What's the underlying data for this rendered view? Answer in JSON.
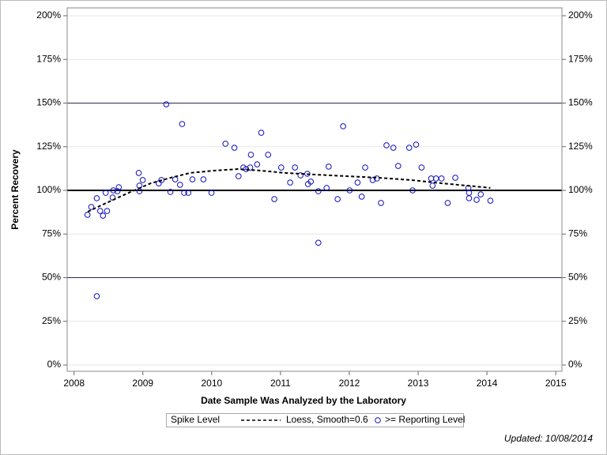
{
  "chart_data": {
    "type": "scatter",
    "x_label": "Date Sample Was Analyzed by the Laboratory",
    "y_label": "Percent Recovery",
    "xlim": [
      2007.9,
      2015.09
    ],
    "xticks": [
      2008,
      2009,
      2010,
      2011,
      2012,
      2013,
      2014,
      2015
    ],
    "ylim": [
      -3.6,
      204.5
    ],
    "yticks": [
      {
        "value": 0,
        "label": "0%"
      },
      {
        "value": 25,
        "label": "25%"
      },
      {
        "value": 50,
        "label": "50%"
      },
      {
        "value": 75,
        "label": "75%"
      },
      {
        "value": 100,
        "label": "100%"
      },
      {
        "value": 125,
        "label": "125%"
      },
      {
        "value": 150,
        "label": "150%"
      },
      {
        "value": 175,
        "label": "175%"
      },
      {
        "value": 200,
        "label": "200%"
      }
    ],
    "grid": true,
    "reference_lines": [
      50,
      150
    ],
    "spike_level": 100,
    "legend_title": "Spike Level",
    "series": [
      {
        "name": ">= Reporting Level",
        "color": "#1010c0",
        "x": [
          2008.195,
          2008.25,
          2008.33,
          2008.33,
          2008.38,
          2008.42,
          2008.46,
          2008.48,
          2008.56,
          2008.57,
          2008.63,
          2008.65,
          2008.94,
          2008.95,
          2008.95,
          2008.998,
          2009.23,
          2009.27,
          2009.34,
          2009.4,
          2009.47,
          2009.54,
          2009.57,
          2009.6,
          2009.66,
          2009.72,
          2009.88,
          2009.997,
          2010.2,
          2010.33,
          2010.39,
          2010.46,
          2010.5,
          2010.56,
          2010.57,
          2010.66,
          2010.72,
          2010.82,
          2010.91,
          2011.01,
          2011.14,
          2011.21,
          2011.29,
          2011.39,
          2011.4,
          2011.44,
          2011.55,
          2011.55,
          2011.67,
          2011.7,
          2011.83,
          2011.91,
          2012.005,
          2012.12,
          2012.18,
          2012.23,
          2012.34,
          2012.4,
          2012.46,
          2012.54,
          2012.64,
          2012.71,
          2012.87,
          2012.92,
          2012.97,
          2013.05,
          2013.19,
          2013.21,
          2013.26,
          2013.34,
          2013.43,
          2013.54,
          2013.73,
          2013.74,
          2013.74,
          2013.85,
          2013.91,
          2014.05
        ],
        "values": [
          86,
          90.5,
          39.4,
          95.5,
          88.2,
          85.5,
          98.6,
          88.2,
          95.9,
          100,
          99.5,
          101.8,
          110,
          102.7,
          99.5,
          105.9,
          104,
          105.9,
          149.3,
          99.1,
          106.3,
          103.2,
          138,
          98.6,
          98.6,
          106.3,
          106.3,
          98.6,
          126.7,
          124.4,
          108.1,
          113.1,
          112.2,
          113.1,
          120.4,
          114.9,
          133,
          120.4,
          95,
          113.1,
          104.5,
          113.1,
          108.6,
          109.5,
          103.6,
          105,
          70,
          99.5,
          101.4,
          113.6,
          95,
          136.7,
          100,
          104.5,
          96.4,
          113.1,
          105.9,
          106.8,
          92.8,
          125.8,
          124.4,
          114,
          124.4,
          100,
          126.2,
          113.1,
          106.8,
          102.7,
          106.8,
          106.8,
          92.8,
          107.2,
          101.4,
          98.6,
          95.5,
          94.6,
          97.7,
          94.1
        ]
      },
      {
        "name": "Loess, Smooth=0.6",
        "color": "#000000",
        "x": [
          2008.2,
          2008.42,
          2008.77,
          2009.11,
          2009.4,
          2009.69,
          2010.03,
          2010.38,
          2010.72,
          2011.06,
          2011.52,
          2011.98,
          2012.44,
          2012.9,
          2013.36,
          2013.82,
          2014.05
        ],
        "values": [
          87.8,
          91.9,
          98.2,
          104,
          107.2,
          110,
          111.3,
          112.2,
          111.3,
          110,
          109,
          108.1,
          107.2,
          105.9,
          104,
          102.3,
          101.4
        ]
      }
    ],
    "footnote": "Updated: 10/08/2014"
  }
}
